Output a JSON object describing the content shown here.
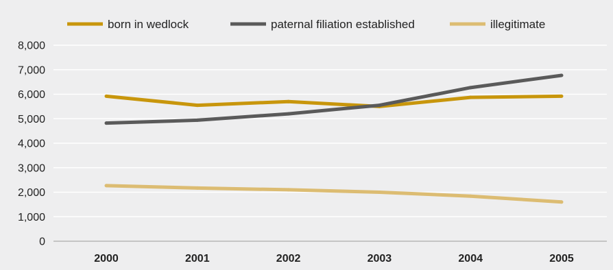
{
  "chart_data": {
    "type": "line",
    "title": "",
    "xlabel": "",
    "ylabel": "",
    "categories": [
      "2000",
      "2001",
      "2002",
      "2003",
      "2004",
      "2005"
    ],
    "y_ticks": [
      "0",
      "1,000",
      "2,000",
      "3,000",
      "4,000",
      "5,000",
      "6,000",
      "7,000",
      "8,000"
    ],
    "ylim": [
      0,
      8000
    ],
    "grid": true,
    "legend_position": "top",
    "series": [
      {
        "name": "born in wedlock",
        "color": "#c8960c",
        "values": [
          5920,
          5550,
          5700,
          5500,
          5870,
          5920
        ]
      },
      {
        "name": "paternal filiation established",
        "color": "#5a5a5a",
        "values": [
          4820,
          4940,
          5200,
          5550,
          6270,
          6770
        ]
      },
      {
        "name": "illegitimate",
        "color": "#dcbc72",
        "values": [
          2270,
          2170,
          2100,
          2000,
          1840,
          1600
        ]
      }
    ]
  }
}
